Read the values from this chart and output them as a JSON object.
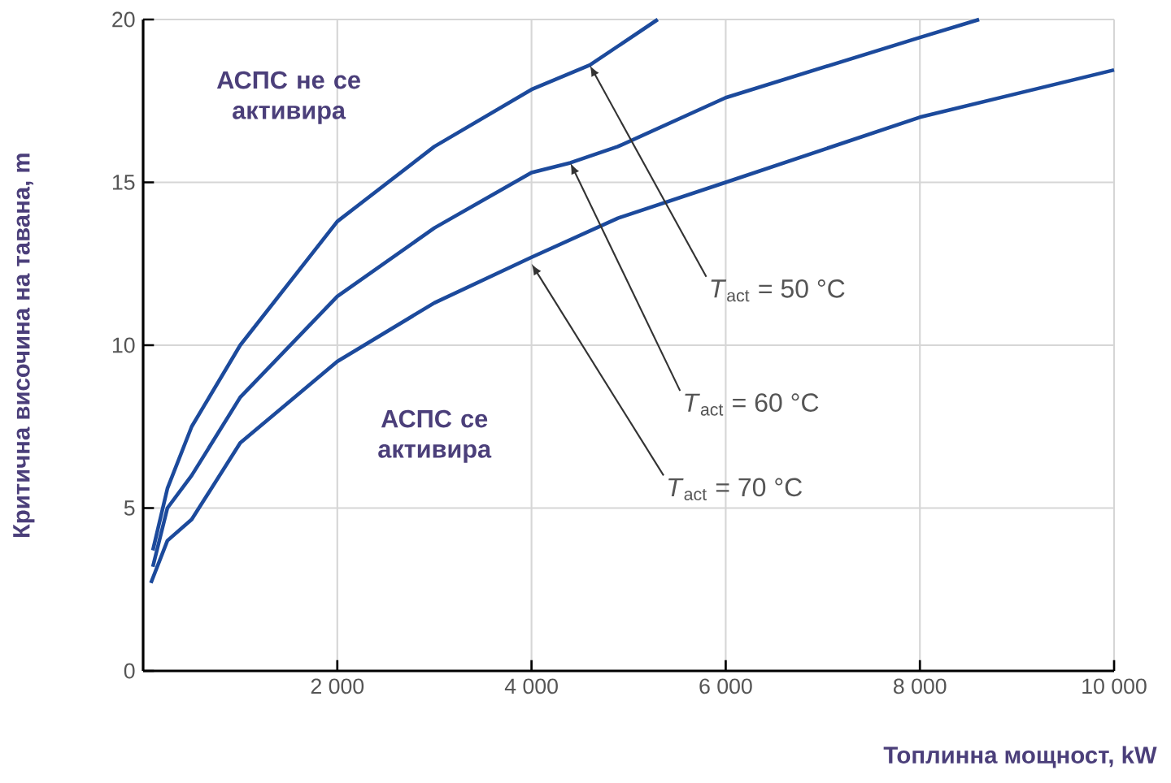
{
  "chart_data": {
    "type": "line",
    "xlabel": "Топлинна мощност, kW",
    "ylabel": "Критична височина на тавана, m",
    "xlim": [
      0,
      10000
    ],
    "ylim": [
      0,
      20
    ],
    "xticks": [
      {
        "value": 2000,
        "label": "2 000"
      },
      {
        "value": 4000,
        "label": "4 000"
      },
      {
        "value": 6000,
        "label": "6 000"
      },
      {
        "value": 8000,
        "label": "8 000"
      },
      {
        "value": 10000,
        "label": "10 000"
      }
    ],
    "yticks": [
      0,
      5,
      10,
      15,
      20
    ],
    "grid": true,
    "marker": "none",
    "line_style": "solid",
    "series": [
      {
        "color": "#1c4a9c",
        "x": [
          100,
          250,
          500,
          1000,
          2000,
          3000,
          4000,
          4600,
          5300
        ],
        "values": [
          3.7,
          5.6,
          7.5,
          10.0,
          13.8,
          16.1,
          17.85,
          18.6,
          20.0
        ]
      },
      {
        "color": "#1c4a9c",
        "x": [
          100,
          250,
          500,
          1000,
          2000,
          3000,
          4000,
          4400,
          4890,
          6000,
          8000,
          8610
        ],
        "values": [
          3.2,
          5.0,
          6.0,
          8.4,
          11.5,
          13.6,
          15.3,
          15.6,
          16.1,
          17.6,
          19.45,
          20.0
        ]
      },
      {
        "color": "#1c4a9c",
        "x": [
          80,
          250,
          500,
          1000,
          2000,
          3000,
          4000,
          4890,
          6000,
          8000,
          10000
        ],
        "values": [
          2.7,
          4.0,
          4.65,
          7.0,
          9.5,
          11.3,
          12.7,
          13.9,
          15.0,
          17.0,
          18.45
        ]
      }
    ],
    "annotations": [
      "АСПС не се активира",
      "АСПС се активира",
      {
        "text": "*T*$_{act}$ = 50 °C",
        "x": 4600,
        "y": 18.6
      },
      {
        "text": "*T*$_{act}$ = 60 °C",
        "x": 4400,
        "y": 15.6
      },
      {
        "text": "*T*$_{act}$ = 70 °C",
        "x": 4000,
        "y": 12.5
      }
    ]
  }
}
